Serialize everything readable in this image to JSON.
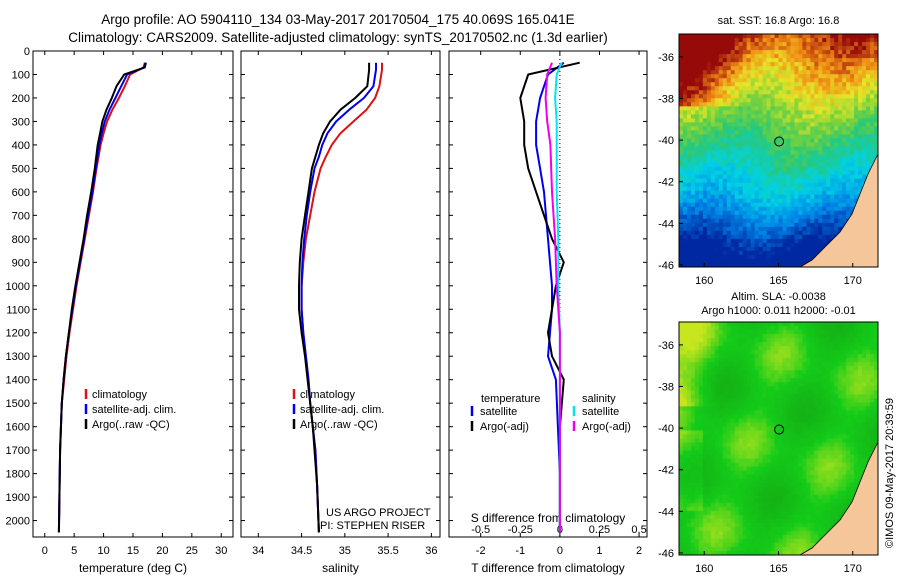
{
  "header": {
    "line1": "Argo profile: AO 5904110_134 03-May-2017 20170504_175 40.069S 165.041E",
    "line2": "Climatology: CARS2009. Satellite-adjusted climatology: synTS_20170502.nc (1.3d earlier)"
  },
  "colors": {
    "climatology": "#dd1111",
    "satellite": "#0000ee",
    "argo": "#000000",
    "sal_satellite": "#00e5ee",
    "sal_argo": "#ee00ee"
  },
  "chart_data": [
    {
      "type": "line",
      "xlabel": "temperature (deg C)",
      "ylabel": "",
      "xlim": [
        -2,
        32
      ],
      "ylim": [
        2070,
        0
      ],
      "xticks": [
        "0",
        "5",
        "10",
        "15",
        "20",
        "25",
        "30"
      ],
      "yticks": [
        "0",
        "100",
        "200",
        "300",
        "400",
        "500",
        "600",
        "700",
        "800",
        "900",
        "1000",
        "1100",
        "1200",
        "1300",
        "1400",
        "1500",
        "1600",
        "1700",
        "1800",
        "1900",
        "2000"
      ],
      "legend": [
        "climatology",
        "satellite-adj. clim.",
        "Argo(..raw -QC)"
      ],
      "legend_position": "center-right",
      "series": [
        {
          "name": "climatology",
          "x": [
            17.0,
            16.8,
            14.5,
            13.6,
            12.6,
            11.5,
            10.6,
            10.0,
            9.5,
            8.8,
            8.2,
            7.5,
            6.8,
            6.1,
            5.4,
            4.8,
            4.2,
            3.7,
            3.3,
            2.9,
            2.6,
            2.4
          ],
          "y": [
            50,
            70,
            100,
            150,
            200,
            250,
            300,
            350,
            400,
            500,
            600,
            700,
            800,
            900,
            1000,
            1100,
            1200,
            1300,
            1400,
            1500,
            1700,
            2050
          ]
        },
        {
          "name": "satellite-adj. clim.",
          "x": [
            17.1,
            16.9,
            14.0,
            13.0,
            12.0,
            11.0,
            10.2,
            9.7,
            9.3,
            8.7,
            8.1,
            7.4,
            6.7,
            6.0,
            5.3,
            4.7,
            4.1,
            3.6,
            3.2,
            2.9,
            2.6,
            2.4
          ],
          "y": [
            50,
            70,
            100,
            150,
            200,
            250,
            300,
            350,
            400,
            500,
            600,
            700,
            800,
            900,
            1000,
            1100,
            1200,
            1300,
            1400,
            1500,
            1700,
            2050
          ]
        },
        {
          "name": "Argo(..raw -QC)",
          "x": [
            17.2,
            17.0,
            13.5,
            12.2,
            11.4,
            10.5,
            9.8,
            9.4,
            9.0,
            8.5,
            7.9,
            7.2,
            6.6,
            5.9,
            5.2,
            4.6,
            4.1,
            3.6,
            3.2,
            2.9,
            2.6,
            2.4
          ],
          "y": [
            50,
            70,
            100,
            150,
            200,
            250,
            300,
            350,
            400,
            500,
            600,
            700,
            800,
            900,
            1000,
            1100,
            1200,
            1300,
            1400,
            1500,
            1700,
            2050
          ]
        }
      ]
    },
    {
      "type": "line",
      "xlabel": "salinity",
      "ylabel": "",
      "xlim": [
        33.8,
        36.1
      ],
      "ylim": [
        2070,
        0
      ],
      "xticks": [
        "34",
        "34.5",
        "35",
        "35.5",
        "36"
      ],
      "legend": [
        "climatology",
        "satellite-adj. clim.",
        "Argo(..raw -QC)"
      ],
      "legend_position": "center-right",
      "annotations": [
        "US ARGO PROJECT",
        "PI: STEPHEN RISER"
      ],
      "series": [
        {
          "name": "climatology",
          "x": [
            35.43,
            35.43,
            35.4,
            35.35,
            35.25,
            35.1,
            34.95,
            34.85,
            34.78,
            34.72,
            34.65,
            34.6,
            34.55,
            34.52,
            34.5,
            34.5,
            34.52,
            34.55,
            34.58,
            34.6,
            34.63,
            34.66,
            34.68,
            34.7
          ],
          "y": [
            50,
            80,
            150,
            200,
            250,
            300,
            350,
            400,
            450,
            500,
            600,
            700,
            800,
            900,
            1000,
            1100,
            1200,
            1300,
            1400,
            1500,
            1600,
            1700,
            1850,
            2050
          ]
        },
        {
          "name": "satellite-adj. clim.",
          "x": [
            35.36,
            35.36,
            35.33,
            35.22,
            35.05,
            34.9,
            34.8,
            34.74,
            34.7,
            34.65,
            34.6,
            34.56,
            34.53,
            34.51,
            34.5,
            34.5,
            34.52,
            34.55,
            34.58,
            34.6,
            34.63,
            34.66,
            34.68,
            34.7
          ],
          "y": [
            50,
            80,
            150,
            200,
            250,
            300,
            350,
            400,
            450,
            500,
            600,
            700,
            800,
            900,
            1000,
            1100,
            1200,
            1300,
            1400,
            1500,
            1600,
            1700,
            1850,
            2050
          ]
        },
        {
          "name": "Argo(..raw -QC)",
          "x": [
            35.28,
            35.28,
            35.26,
            35.12,
            34.95,
            34.83,
            34.75,
            34.7,
            34.66,
            34.62,
            34.58,
            34.54,
            34.5,
            34.48,
            34.47,
            34.47,
            34.5,
            34.54,
            34.57,
            34.6,
            34.63,
            34.65,
            34.68,
            34.7
          ],
          "y": [
            50,
            80,
            150,
            200,
            250,
            300,
            350,
            400,
            450,
            500,
            600,
            700,
            800,
            900,
            1000,
            1100,
            1200,
            1300,
            1400,
            1500,
            1600,
            1700,
            1850,
            2050
          ]
        }
      ]
    },
    {
      "type": "line",
      "xlabel": "T difference from climatology",
      "x2label": "S difference from climatology",
      "ylabel": "",
      "xlim": [
        -2.8,
        2.2
      ],
      "x2lim": [
        -0.7,
        0.55
      ],
      "ylim": [
        2070,
        0
      ],
      "xticks": [
        "-2",
        "-1",
        "0",
        "1",
        "2"
      ],
      "x2ticks": [
        "-0.5",
        "-0.25",
        "0",
        "0.25",
        "0.5"
      ],
      "legend_titles": [
        "temperature",
        "salinity"
      ],
      "legend": [
        "satellite",
        "Argo(-adj)",
        "satellite",
        "Argo(-adj)"
      ],
      "legend_position": "lower-center",
      "series": [
        {
          "name": "satellite",
          "variable": "temperature",
          "x": [
            0.1,
            -0.3,
            -0.5,
            -0.6,
            -0.6,
            -0.5,
            -0.4,
            -0.35,
            -0.3,
            -0.25,
            -0.2,
            -0.2,
            -0.25,
            -0.3,
            -0.1,
            -0.05,
            0,
            0
          ],
          "y": [
            50,
            100,
            200,
            300,
            400,
            500,
            600,
            700,
            800,
            900,
            1000,
            1100,
            1200,
            1300,
            1400,
            1600,
            1800,
            2050
          ]
        },
        {
          "name": "Argo(-adj)",
          "variable": "temperature",
          "x": [
            0.5,
            -0.8,
            -1.0,
            -0.9,
            -0.9,
            -0.8,
            -0.6,
            -0.4,
            -0.2,
            0.1,
            -0.1,
            -0.2,
            -0.3,
            -0.2,
            0.1,
            0,
            0,
            0
          ],
          "y": [
            50,
            100,
            200,
            300,
            400,
            500,
            600,
            700,
            800,
            900,
            1000,
            1100,
            1200,
            1300,
            1400,
            1600,
            1800,
            2050
          ]
        },
        {
          "name": "satellite",
          "variable": "salinity",
          "x": [
            0.01,
            -0.02,
            -0.03,
            -0.02,
            -0.02,
            -0.02,
            -0.01,
            -0.01,
            0,
            0,
            0,
            0,
            0
          ],
          "y": [
            50,
            100,
            200,
            300,
            400,
            600,
            800,
            1000,
            1200,
            1400,
            1600,
            1800,
            2050
          ]
        },
        {
          "name": "Argo(-adj)",
          "variable": "salinity",
          "x": [
            -0.05,
            -0.08,
            -0.09,
            -0.08,
            -0.06,
            -0.05,
            -0.03,
            -0.02,
            0,
            0,
            0,
            0,
            0
          ],
          "y": [
            50,
            100,
            200,
            300,
            400,
            600,
            800,
            1000,
            1200,
            1400,
            1600,
            1800,
            2050
          ]
        }
      ]
    },
    {
      "type": "heatmap",
      "title": "sat. SST: 16.8 Argo: 16.8",
      "xlim": [
        158.3,
        171.7
      ],
      "ylim": [
        -46.1,
        -34.9
      ],
      "xticks": [
        "160",
        "165",
        "170"
      ],
      "yticks": [
        "-36",
        "-38",
        "-40",
        "-42",
        "-44",
        "-46"
      ],
      "marker": {
        "lon": 165.041,
        "lat": -40.069
      }
    },
    {
      "type": "heatmap",
      "title": "Altim. SLA: -0.0038",
      "subtitle": "Argo h1000: 0.011 h2000: -0.01",
      "xlim": [
        158.3,
        171.7
      ],
      "ylim": [
        -46.1,
        -34.9
      ],
      "xticks": [
        "160",
        "165",
        "170"
      ],
      "yticks": [
        "-36",
        "-38",
        "-40",
        "-42",
        "-44",
        "-46"
      ],
      "marker": {
        "lon": 165.041,
        "lat": -40.069
      }
    }
  ],
  "footer_vertical": "©IMOS 09-May-2017 20:39:59"
}
